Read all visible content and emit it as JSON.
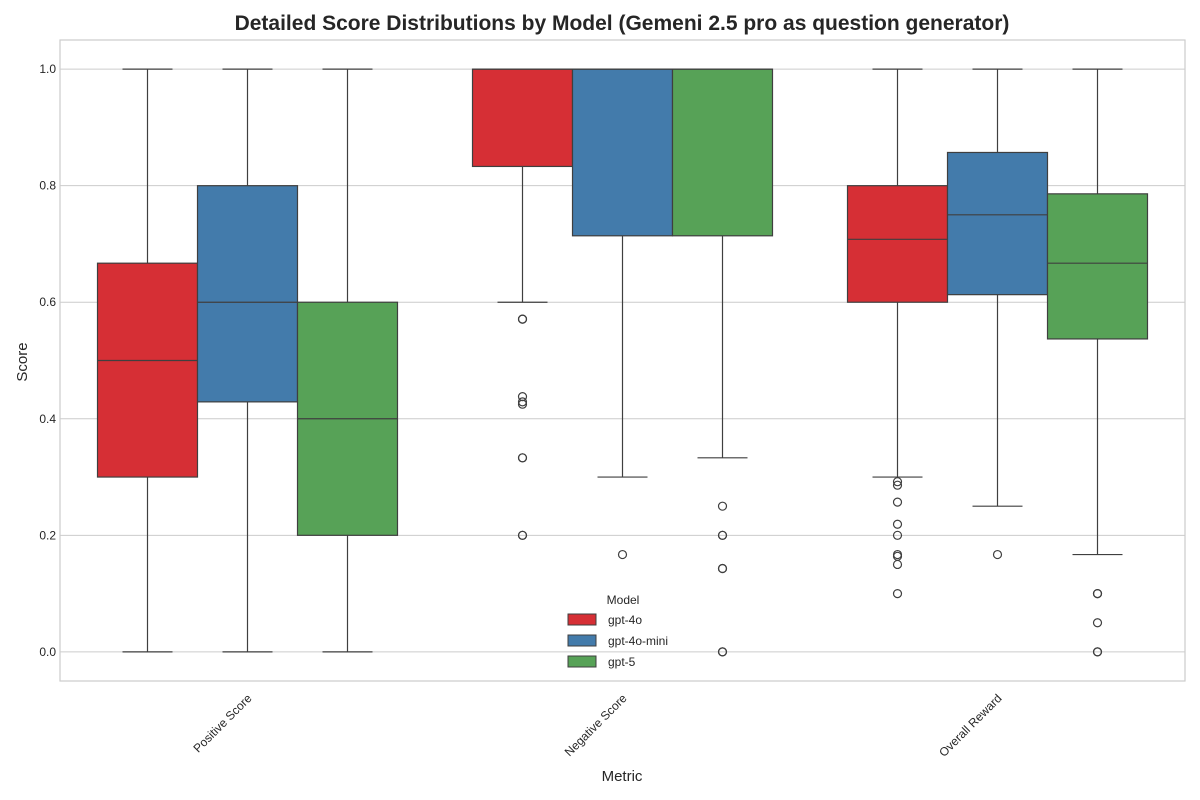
{
  "chart_data": {
    "type": "box",
    "title": "Detailed Score Distributions by Model (Gemeni 2.5 pro as question generator)",
    "xlabel": "Metric",
    "ylabel": "Score",
    "ylim": [
      -0.05,
      1.05
    ],
    "yticks": [
      0.0,
      0.2,
      0.4,
      0.6,
      0.8,
      1.0
    ],
    "grid": true,
    "categories": [
      "Positive Score",
      "Negative Score",
      "Overall Reward"
    ],
    "legend": {
      "title": "Model",
      "placement": "lower-center",
      "entries": [
        "gpt-4o",
        "gpt-4o-mini",
        "gpt-5"
      ]
    },
    "series": [
      {
        "name": "gpt-4o",
        "color": "#d62f35",
        "boxes": [
          {
            "whisker_low": 0.0,
            "q1": 0.3,
            "median": 0.5,
            "q3": 0.667,
            "whisker_high": 1.0,
            "outliers": []
          },
          {
            "whisker_low": 0.6,
            "q1": 0.833,
            "median": 1.0,
            "q3": 1.0,
            "whisker_high": 1.0,
            "outliers": [
              0.571,
              0.571,
              0.438,
              0.429,
              0.425,
              0.333,
              0.333,
              0.2,
              0.2
            ]
          },
          {
            "whisker_low": 0.3,
            "q1": 0.6,
            "median": 0.708,
            "q3": 0.8,
            "whisker_high": 1.0,
            "outliers": [
              0.292,
              0.286,
              0.257,
              0.219,
              0.2,
              0.167,
              0.164,
              0.15,
              0.1
            ]
          }
        ]
      },
      {
        "name": "gpt-4o-mini",
        "color": "#437bab",
        "boxes": [
          {
            "whisker_low": 0.0,
            "q1": 0.429,
            "median": 0.6,
            "q3": 0.8,
            "whisker_high": 1.0,
            "outliers": []
          },
          {
            "whisker_low": 0.3,
            "q1": 0.714,
            "median": 1.0,
            "q3": 1.0,
            "whisker_high": 1.0,
            "outliers": [
              0.167
            ]
          },
          {
            "whisker_low": 0.25,
            "q1": 0.613,
            "median": 0.75,
            "q3": 0.857,
            "whisker_high": 1.0,
            "outliers": [
              0.167
            ]
          }
        ]
      },
      {
        "name": "gpt-5",
        "color": "#57a257",
        "boxes": [
          {
            "whisker_low": 0.0,
            "q1": 0.2,
            "median": 0.4,
            "q3": 0.6,
            "whisker_high": 1.0,
            "outliers": []
          },
          {
            "whisker_low": 0.333,
            "q1": 0.714,
            "median": 1.0,
            "q3": 1.0,
            "whisker_high": 1.0,
            "outliers": [
              0.25,
              0.2,
              0.2,
              0.143,
              0.143,
              0.0,
              0.0
            ]
          },
          {
            "whisker_low": 0.167,
            "q1": 0.537,
            "median": 0.667,
            "q3": 0.786,
            "whisker_high": 1.0,
            "outliers": [
              0.1,
              0.1,
              0.05,
              0.0,
              0.0
            ]
          }
        ]
      }
    ]
  }
}
